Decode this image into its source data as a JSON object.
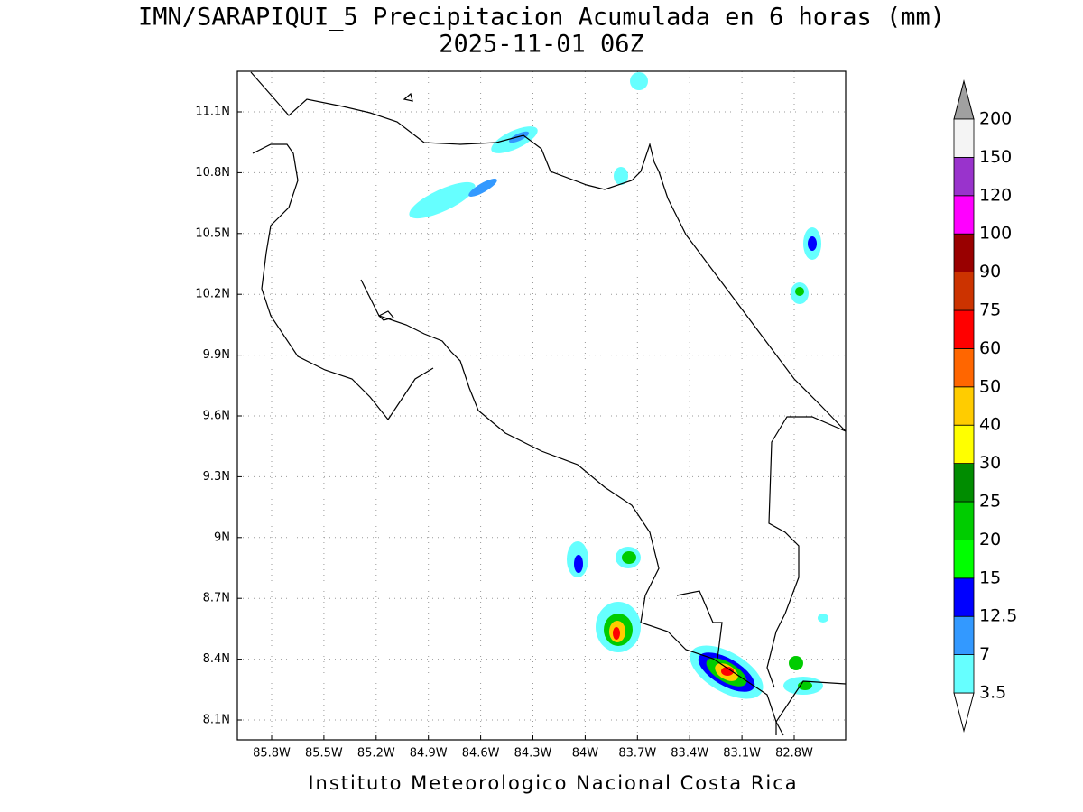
{
  "title": "IMN/SARAPIQUI_5 Precipitacion Acumulada en 6 horas (mm)",
  "subtitle": "2025-11-01 06Z",
  "longitude_labels": [
    "85.8W",
    "85.5W",
    "85.2W",
    "84.9W",
    "84.6W",
    "84.3W",
    "84W",
    "83.7W",
    "83.4W",
    "83.1W",
    "82.8W"
  ],
  "latitude_labels": [
    "11.1N",
    "10.8N",
    "10.5N",
    "10.2N",
    "9.9N",
    "9.6N",
    "9.3N",
    "9N",
    "8.7N",
    "8.4N",
    "8.1N"
  ],
  "colorbar": {
    "labels": [
      "3.5",
      "7",
      "12.5",
      "15",
      "20",
      "25",
      "30",
      "40",
      "50",
      "60",
      "75",
      "90",
      "100",
      "120",
      "150",
      "200"
    ],
    "colors": [
      "#66ffff",
      "#3399ff",
      "#0000ff",
      "#00ff00",
      "#00cc00",
      "#008c00",
      "#ffff00",
      "#ffcc00",
      "#ff6600",
      "#ff0000",
      "#cc3300",
      "#990000",
      "#ff00ff",
      "#9933cc",
      "#f4f4f4"
    ],
    "under_color": "#ffffff",
    "over_color": "#a0a0a0"
  },
  "footer": "Instituto Meteorologico Nacional Costa Rica"
}
